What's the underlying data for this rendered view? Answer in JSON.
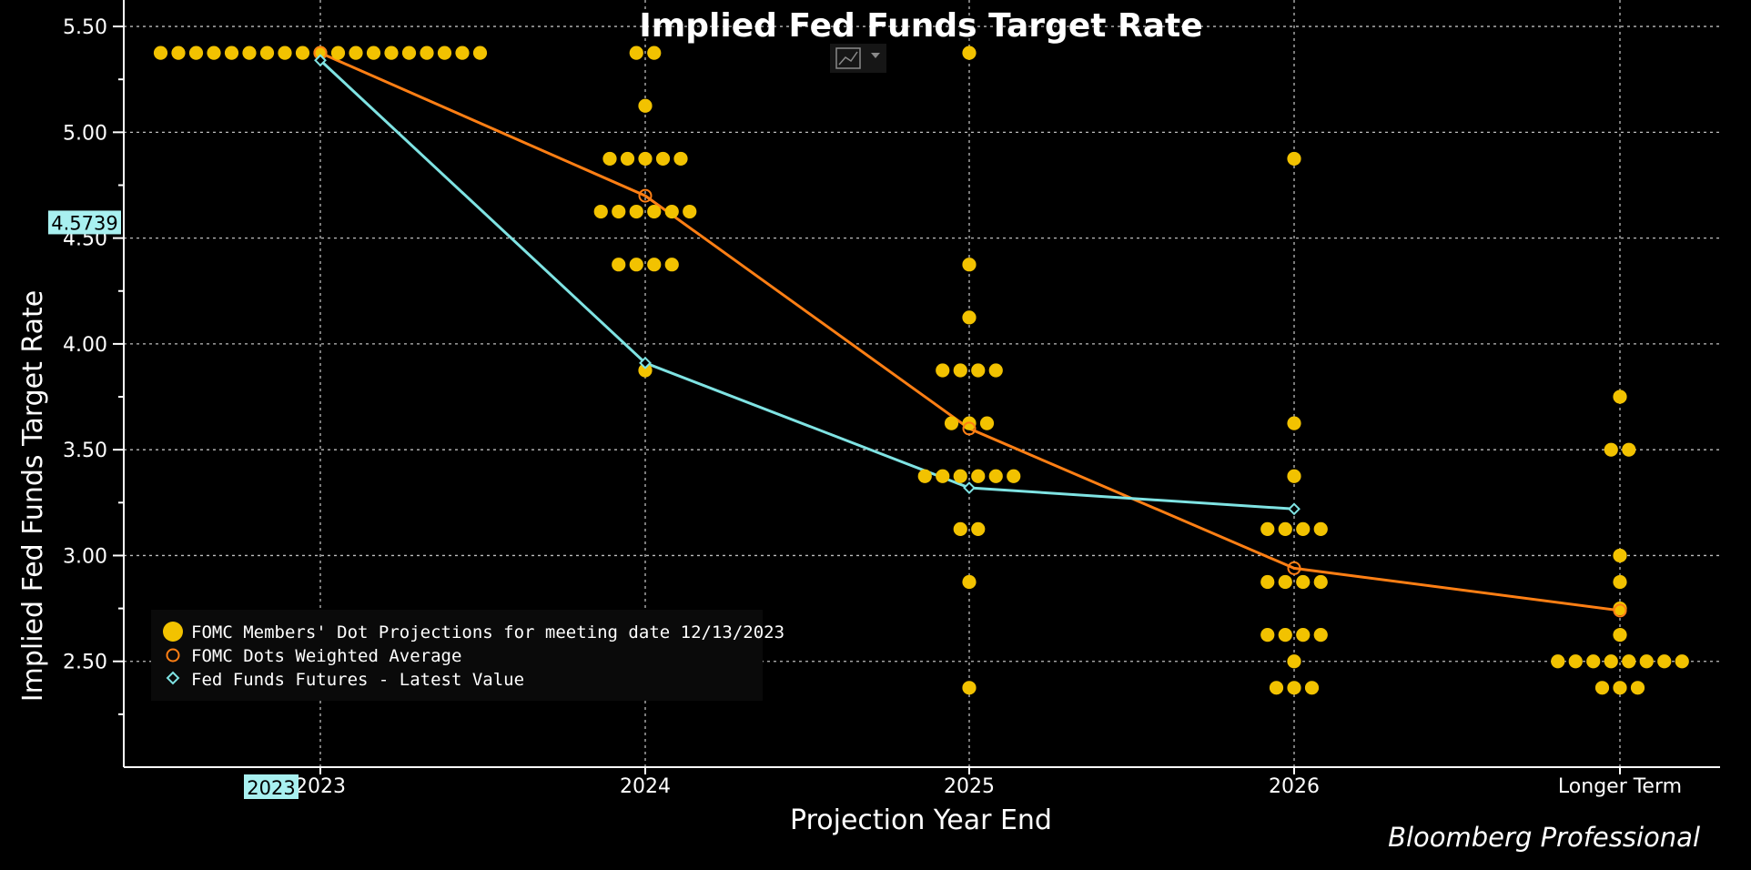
{
  "chart_data": {
    "type": "scatter",
    "title": "Implied Fed Funds Target Rate",
    "xlabel": "Projection Year End",
    "ylabel": "Implied Fed Funds Target Rate",
    "categories": [
      "2023",
      "2024",
      "2025",
      "2026",
      "Longer Term"
    ],
    "ylim": [
      2.0,
      5.625
    ],
    "yticks": [
      "5.50",
      "5.00",
      "4.50",
      "4.00",
      "3.50",
      "3.00",
      "2.50"
    ],
    "grid": true,
    "legend_position": "bottom-left",
    "y_badge": "4.5739",
    "x_badge": "2023",
    "watermark": "Bloomberg Professional",
    "colors": {
      "dots": "#f2c200",
      "average": "#ff7f14",
      "futures": "#7fe3e3",
      "badge": "#a8f0f0"
    },
    "series": [
      {
        "name": "FOMC Members' Dot Projections for meeting date 12/13/2023",
        "marker": "dot",
        "values": [
          [
            5.375,
            5.375,
            5.375,
            5.375,
            5.375,
            5.375,
            5.375,
            5.375,
            5.375,
            5.375,
            5.375,
            5.375,
            5.375,
            5.375,
            5.375,
            5.375,
            5.375,
            5.375,
            5.375
          ],
          [
            5.375,
            5.375,
            5.125,
            4.875,
            4.875,
            4.875,
            4.875,
            4.875,
            4.625,
            4.625,
            4.625,
            4.625,
            4.625,
            4.625,
            4.375,
            4.375,
            4.375,
            4.375,
            3.875
          ],
          [
            5.375,
            4.375,
            4.125,
            3.875,
            3.875,
            3.875,
            3.875,
            3.625,
            3.625,
            3.625,
            3.375,
            3.375,
            3.375,
            3.375,
            3.375,
            3.375,
            3.125,
            3.125,
            2.875,
            2.375
          ],
          [
            4.875,
            3.625,
            3.375,
            3.125,
            3.125,
            3.125,
            3.125,
            2.875,
            2.875,
            2.875,
            2.875,
            2.625,
            2.625,
            2.625,
            2.625,
            2.5,
            2.375,
            2.375,
            2.375
          ],
          [
            3.75,
            3.5,
            3.5,
            3.0,
            2.875,
            2.75,
            2.625,
            2.5,
            2.5,
            2.5,
            2.5,
            2.5,
            2.5,
            2.5,
            2.5,
            2.375,
            2.375,
            2.375
          ]
        ]
      },
      {
        "name": "FOMC Dots Weighted Average",
        "marker": "circle",
        "values": [
          5.375,
          4.7,
          3.6,
          2.94,
          2.74
        ]
      },
      {
        "name": "Fed Funds Futures - Latest Value",
        "marker": "diamond",
        "values": [
          5.34,
          3.91,
          3.32,
          3.22,
          null
        ]
      }
    ]
  }
}
